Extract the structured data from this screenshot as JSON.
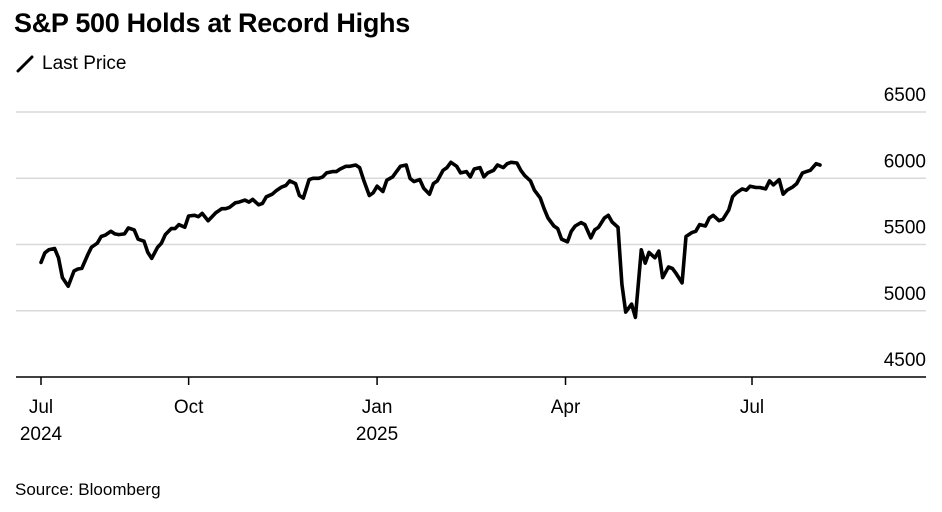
{
  "title": "S&P 500 Holds at Record Highs",
  "legend_label": "Last Price",
  "source": "Source: Bloomberg",
  "colors": {
    "line": "#000000",
    "grid": "#d9d9d9",
    "axis": "#000000"
  },
  "chart_data": {
    "type": "line",
    "title": "S&P 500 Holds at Record Highs",
    "series": [
      {
        "name": "Last Price",
        "x": [
          0,
          2,
          4,
          7,
          9,
          11,
          14,
          17,
          19,
          21,
          24,
          26,
          29,
          31,
          33,
          36,
          38,
          40,
          43,
          45,
          48,
          50,
          53,
          55,
          57,
          60,
          62,
          64,
          67,
          69,
          71,
          74,
          76,
          79,
          81,
          83,
          86,
          88,
          90,
          93,
          95,
          97,
          100,
          102,
          105,
          107,
          109,
          112,
          114,
          116,
          119,
          121,
          124,
          126,
          128,
          131,
          133,
          135,
          138,
          140,
          143,
          145,
          147,
          150,
          152,
          154,
          157,
          159,
          162,
          164,
          166,
          169,
          171,
          173,
          176,
          178,
          181,
          183,
          185,
          188,
          190,
          192,
          195,
          197,
          200,
          202,
          204,
          207,
          209,
          211,
          214,
          216,
          219,
          221,
          223,
          226,
          228,
          230,
          233,
          235,
          238,
          240,
          242,
          245,
          247,
          249,
          252,
          254,
          257,
          259,
          261,
          264,
          266,
          268,
          271,
          273,
          275,
          278,
          280,
          283,
          285,
          287,
          290,
          292,
          294,
          297,
          299,
          301,
          304,
          306,
          309,
          311,
          313,
          316,
          318,
          320,
          323,
          325,
          327,
          330,
          332,
          335,
          337,
          339,
          342,
          344,
          346,
          349,
          351,
          354,
          356,
          358,
          361,
          363,
          365,
          368,
          370,
          373,
          375,
          377,
          380,
          382,
          384,
          387,
          389,
          392,
          394,
          396,
          399,
          401
        ],
        "values": [
          5365,
          5437,
          5460,
          5470,
          5400,
          5250,
          5185,
          5300,
          5315,
          5320,
          5420,
          5480,
          5510,
          5560,
          5570,
          5600,
          5580,
          5575,
          5580,
          5625,
          5610,
          5540,
          5525,
          5440,
          5395,
          5480,
          5510,
          5575,
          5620,
          5620,
          5650,
          5630,
          5715,
          5720,
          5710,
          5735,
          5680,
          5710,
          5740,
          5770,
          5770,
          5780,
          5815,
          5820,
          5835,
          5820,
          5840,
          5800,
          5810,
          5860,
          5880,
          5905,
          5935,
          5945,
          5980,
          5960,
          5870,
          5850,
          5990,
          6000,
          6000,
          6010,
          6040,
          6050,
          6050,
          6070,
          6090,
          6090,
          6100,
          6080,
          5990,
          5870,
          5890,
          5940,
          5900,
          5985,
          6010,
          6050,
          6090,
          6100,
          5998,
          5975,
          5990,
          5925,
          5880,
          5960,
          5980,
          6060,
          6080,
          6120,
          6090,
          6040,
          6050,
          6010,
          6070,
          6080,
          6010,
          6040,
          6060,
          6100,
          6080,
          6110,
          6120,
          6115,
          6060,
          6020,
          5980,
          5910,
          5850,
          5770,
          5700,
          5640,
          5620,
          5540,
          5520,
          5600,
          5640,
          5665,
          5650,
          5550,
          5610,
          5630,
          5700,
          5720,
          5670,
          5630,
          5200,
          4990,
          5050,
          4950,
          5460,
          5360,
          5440,
          5400,
          5450,
          5250,
          5330,
          5320,
          5280,
          5210,
          5560,
          5590,
          5600,
          5650,
          5640,
          5700,
          5720,
          5680,
          5690,
          5760,
          5860,
          5890,
          5920,
          5910,
          5940,
          5930,
          5930,
          5920,
          5980,
          5950,
          5990,
          5880,
          5910,
          5935,
          5960,
          6040,
          6050,
          6060,
          6110,
          6100
        ]
      }
    ],
    "x_ticks": [
      {
        "label": "Jul",
        "sublabel": "2024",
        "x": 0
      },
      {
        "label": "Oct",
        "sublabel": "",
        "x": 76
      },
      {
        "label": "Jan",
        "sublabel": "2025",
        "x": 173
      },
      {
        "label": "Apr",
        "sublabel": "",
        "x": 270
      },
      {
        "label": "Jul",
        "sublabel": "",
        "x": 366
      }
    ],
    "y_ticks": [
      6500,
      6000,
      5500,
      5000,
      4500
    ],
    "xlim": [
      -12,
      425
    ],
    "ylim": [
      4500,
      6500
    ],
    "xlabel": "",
    "ylabel": "",
    "grid": true,
    "legend_position": "top-left"
  }
}
